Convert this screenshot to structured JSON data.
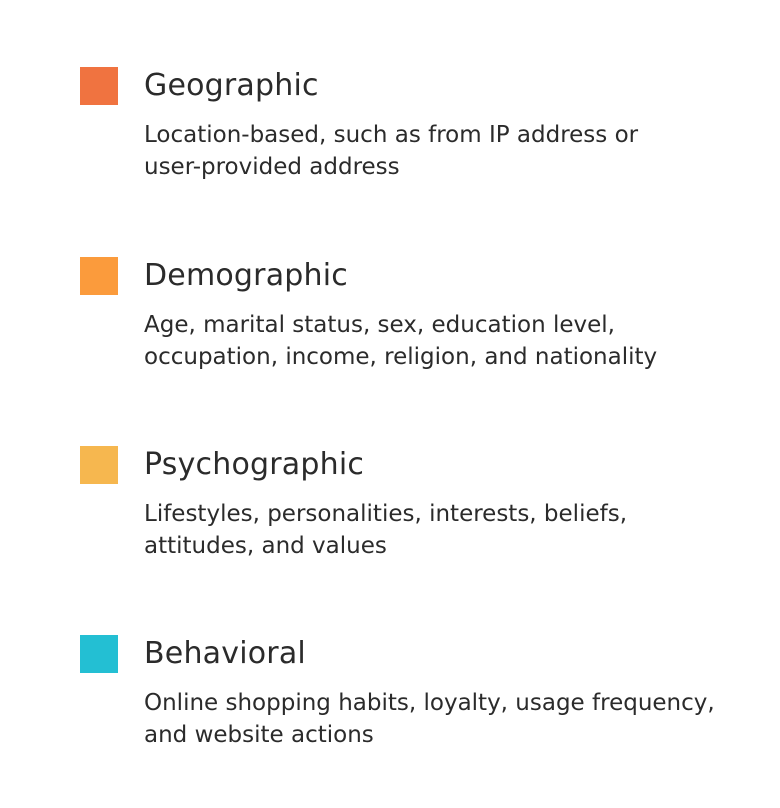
{
  "segments": [
    {
      "title": "Geographic",
      "description": "Location-based, such as from IP address or\nuser-provided address",
      "color": "#F07340"
    },
    {
      "title": "Demographic",
      "description": "Age, marital status, sex, education level,\noccupation, income, religion, and nationality",
      "color": "#FB9B3C"
    },
    {
      "title": "Psychographic",
      "description": " Lifestyles, personalities, interests, beliefs,\nattitudes, and values",
      "color": "#F6B74F"
    },
    {
      "title": "Behavioral",
      "description": "Online shopping habits, loyalty, usage frequency,\nand website actions",
      "color": "#23BFD3"
    }
  ]
}
